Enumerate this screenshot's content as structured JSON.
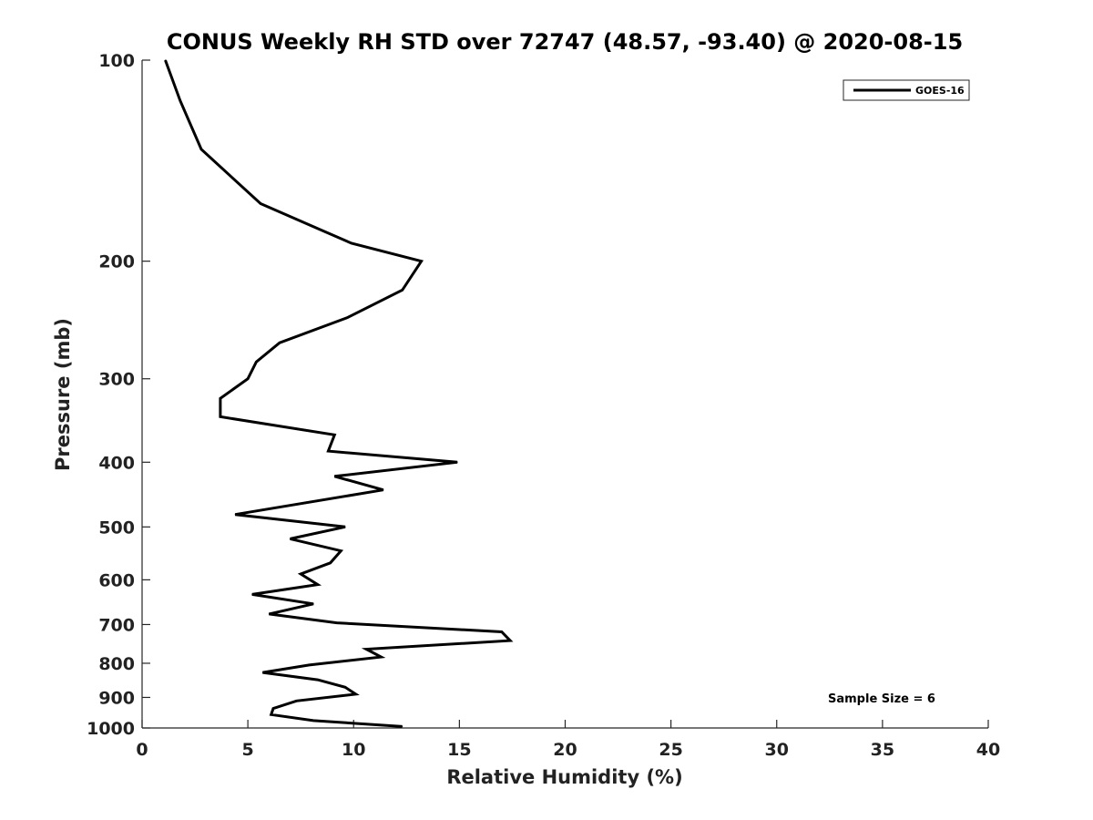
{
  "chart_data": {
    "type": "line",
    "title": "CONUS Weekly RH STD over 72747 (48.57, -93.40) @ 2020-08-15",
    "xlabel": "Relative Humidity (%)",
    "ylabel": "Pressure (mb)",
    "xlim": [
      0,
      40
    ],
    "ylim": [
      1000,
      100
    ],
    "yscale": "log",
    "y_reversed": true,
    "x_ticks": [
      0,
      5,
      10,
      15,
      20,
      25,
      30,
      35,
      40
    ],
    "y_ticks": [
      100,
      200,
      300,
      400,
      500,
      600,
      700,
      800,
      900,
      1000
    ],
    "grid": false,
    "legend_position": "top-right",
    "series": [
      {
        "name": "GOES-16",
        "color": "#000000",
        "x": [
          1.1,
          1.8,
          2.8,
          5.6,
          9.9,
          13.2,
          12.3,
          9.7,
          6.5,
          5.4,
          5.0,
          3.7,
          3.7,
          9.1,
          8.8,
          14.9,
          9.1,
          11.4,
          4.4,
          9.6,
          7.0,
          9.4,
          8.9,
          7.5,
          8.3,
          5.2,
          8.1,
          6.0,
          9.2,
          17.0,
          17.4,
          10.6,
          11.3,
          7.9,
          5.7,
          8.3,
          9.6,
          10.1,
          7.3,
          6.2,
          6.1,
          8.1,
          12.3
        ],
        "y": [
          100,
          115,
          136,
          164,
          188,
          200,
          221,
          243,
          265,
          283,
          300,
          321,
          342,
          364,
          385,
          400,
          420,
          440,
          479,
          500,
          521,
          543,
          566,
          588,
          610,
          631,
          652,
          675,
          696,
          718,
          740,
          762,
          783,
          805,
          826,
          847,
          869,
          890,
          911,
          935,
          955,
          975,
          995
        ]
      }
    ],
    "annotations": [
      "Sample Size = 6"
    ]
  }
}
